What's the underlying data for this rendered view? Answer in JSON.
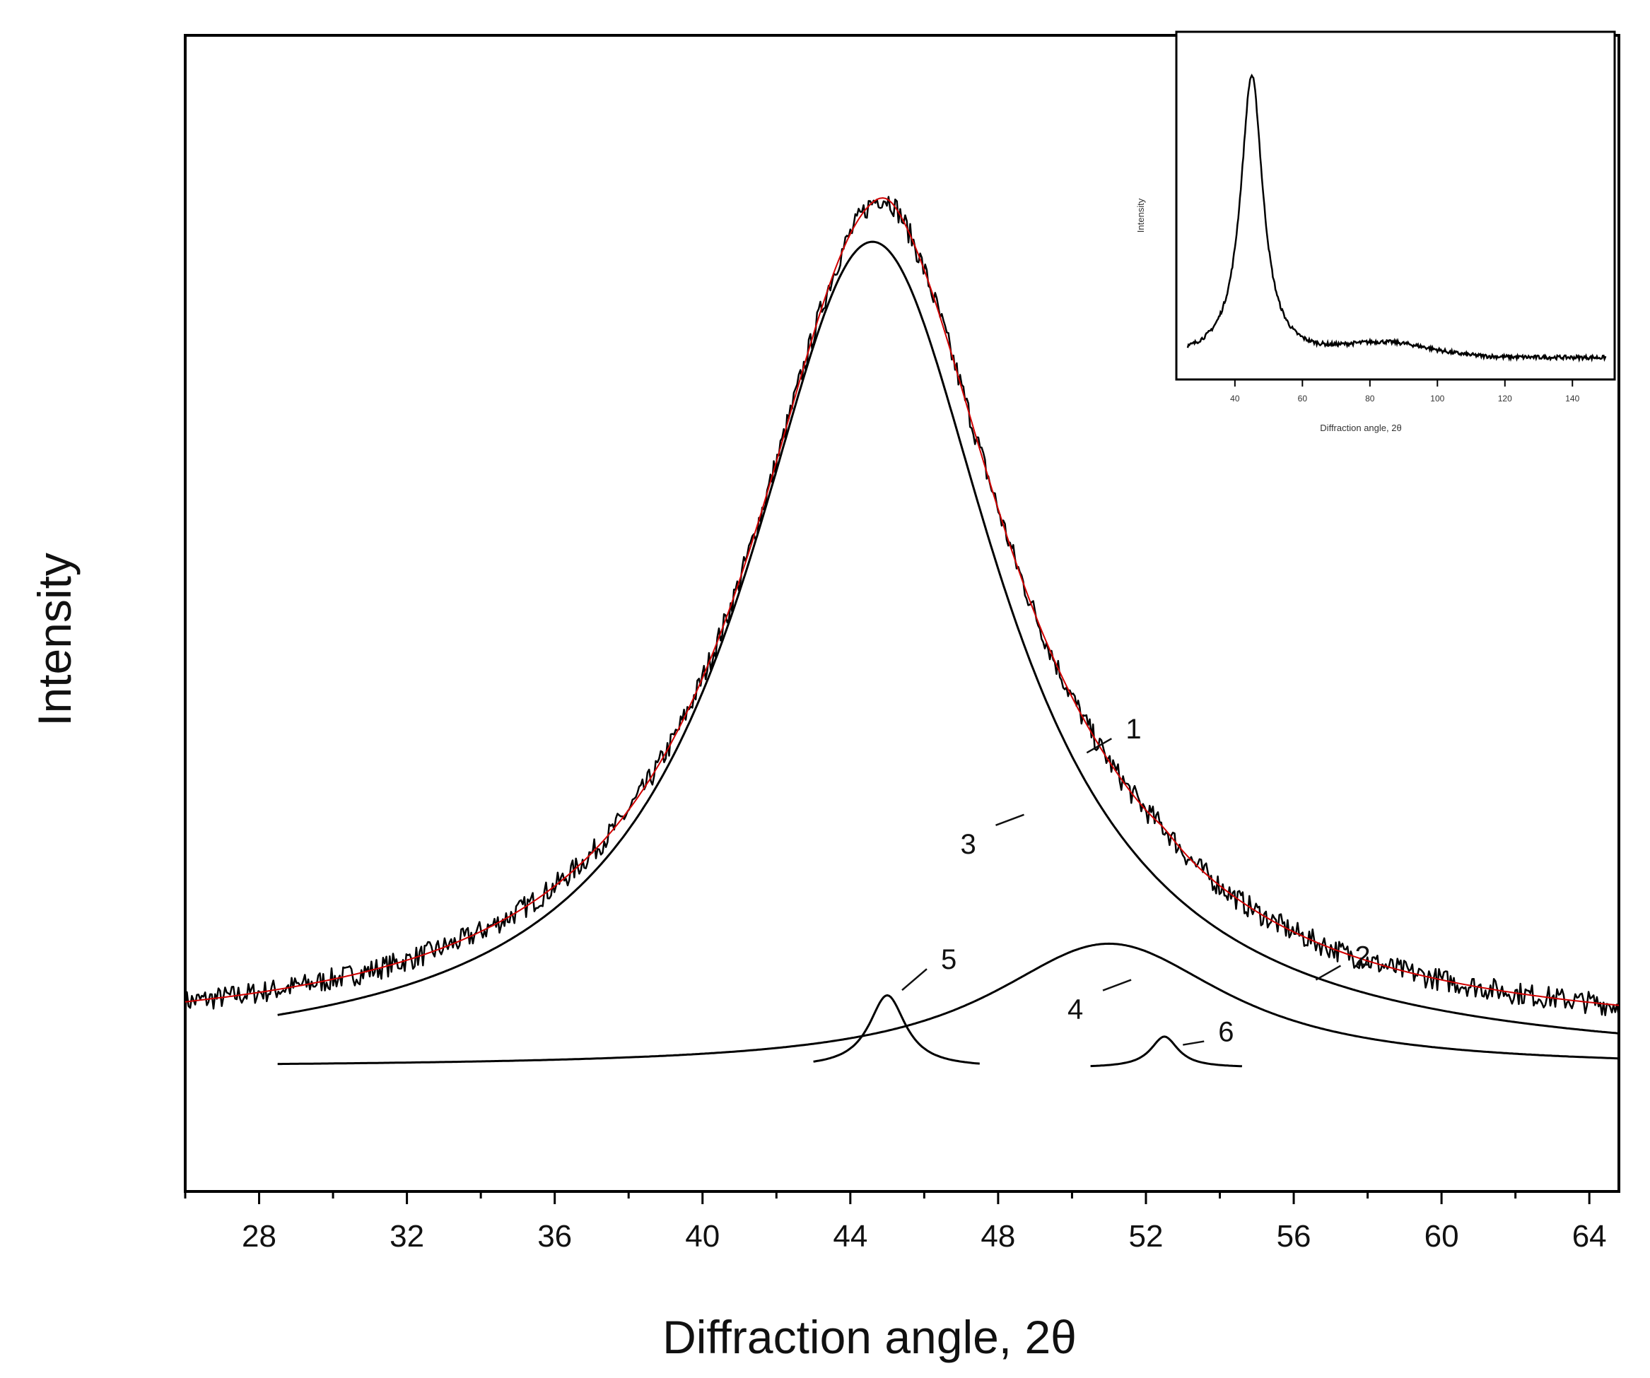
{
  "chart_data": [
    {
      "type": "line",
      "title": "",
      "xlabel": "Diffraction angle, 2θ",
      "ylabel": "Intensity",
      "xlim": [
        26,
        64.8
      ],
      "ylim": [
        -0.12,
        1.0
      ],
      "x_ticks": [
        28,
        32,
        36,
        40,
        44,
        48,
        52,
        56,
        60,
        64
      ],
      "x_ticks_minor": [
        26,
        30,
        34,
        38,
        42,
        46,
        50,
        54,
        58,
        62
      ],
      "y_ticks": [],
      "grid": false,
      "series": [
        {
          "name": "1",
          "label": "1",
          "role": "experimental pattern",
          "color": "#000000",
          "shape": "noisy",
          "center": 44.8,
          "fwhm": 8.4,
          "height": 0.8,
          "baseline": 0.025,
          "x_range": [
            26,
            64.8
          ]
        },
        {
          "name": "2",
          "label": "2",
          "role": "sum of fitted peaks",
          "color": "#d00000",
          "shape": "sum",
          "x_range": [
            26,
            64.8
          ]
        },
        {
          "name": "3",
          "label": "3",
          "role": "fitted peak",
          "color": "#000000",
          "center": 44.6,
          "fwhm": 8.4,
          "height": 0.8,
          "x_range": [
            28.5,
            64.8
          ]
        },
        {
          "name": "4",
          "label": "4",
          "role": "fitted peak",
          "color": "#000000",
          "center": 51.0,
          "fwhm": 7.8,
          "height": 0.12,
          "x_range": [
            28.5,
            64.8
          ]
        },
        {
          "name": "5",
          "label": "5",
          "role": "fitted peak",
          "color": "#000000",
          "center": 45.0,
          "fwhm": 1.2,
          "height": 0.07,
          "x_range": [
            43.0,
            47.5
          ]
        },
        {
          "name": "6",
          "label": "6",
          "role": "fitted peak",
          "color": "#000000",
          "center": 52.5,
          "fwhm": 0.9,
          "height": 0.03,
          "x_range": [
            50.5,
            54.6
          ]
        }
      ]
    },
    {
      "type": "line",
      "role": "inset",
      "title": "",
      "xlabel": "Diffraction angle, 2θ",
      "ylabel": "Intensity",
      "xlim": [
        26,
        150
      ],
      "ylim": [
        0,
        1.0
      ],
      "x_ticks": [
        40,
        60,
        80,
        100,
        120,
        140
      ],
      "grid": false,
      "series": [
        {
          "name": "full pattern",
          "color": "#000000",
          "peak_center": 45,
          "peak_fwhm": 8,
          "peak_height": 0.85,
          "baseline": 0.05,
          "hump_center": 85,
          "hump_height": 0.04
        }
      ]
    }
  ]
}
